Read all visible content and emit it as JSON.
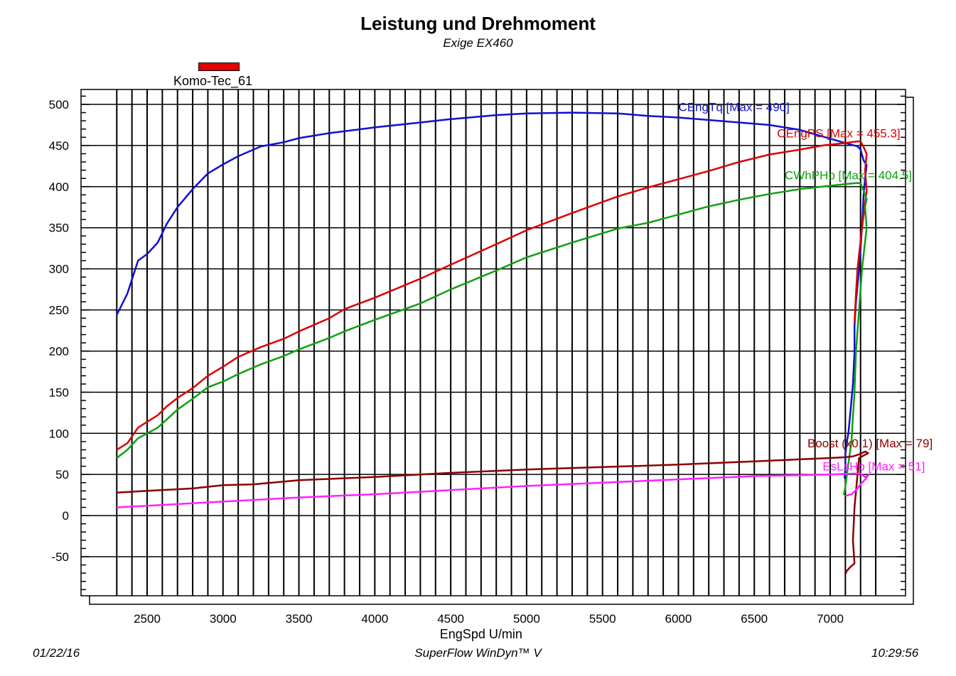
{
  "chart_data": {
    "type": "line",
    "title": "Leistung und Drehmoment",
    "subtitle": "Exige EX460",
    "xlabel": "EngSpd U/min",
    "ylabel": "",
    "xlim": [
      2000,
      7500
    ],
    "ylim": [
      -100,
      510
    ],
    "x_ticks": [
      2500,
      3000,
      3500,
      4000,
      4500,
      5000,
      5500,
      6000,
      6500,
      7000
    ],
    "y_ticks": [
      500,
      450,
      400,
      350,
      300,
      250,
      200,
      150,
      100,
      50,
      0,
      -50
    ],
    "grid": true,
    "legend": {
      "placement": "top-left",
      "entries": [
        {
          "label": "Komo-Tec_61",
          "color": "#e00000"
        }
      ]
    },
    "series": [
      {
        "name": "CEngTq",
        "label": "CEngTq [Max = 490]",
        "color": "#1010d0",
        "points": [
          [
            2300,
            244
          ],
          [
            2370,
            270
          ],
          [
            2440,
            310
          ],
          [
            2500,
            318
          ],
          [
            2570,
            332
          ],
          [
            2630,
            355
          ],
          [
            2700,
            375
          ],
          [
            2800,
            397
          ],
          [
            2900,
            416
          ],
          [
            3000,
            427
          ],
          [
            3100,
            437
          ],
          [
            3250,
            449
          ],
          [
            3400,
            454
          ],
          [
            3500,
            459
          ],
          [
            3700,
            465
          ],
          [
            4000,
            472
          ],
          [
            4300,
            478
          ],
          [
            4500,
            482
          ],
          [
            4800,
            487
          ],
          [
            5000,
            489
          ],
          [
            5300,
            490
          ],
          [
            5600,
            489
          ],
          [
            5800,
            486
          ],
          [
            6000,
            484
          ],
          [
            6200,
            481
          ],
          [
            6400,
            478
          ],
          [
            6600,
            475
          ],
          [
            6800,
            469
          ],
          [
            6950,
            461
          ],
          [
            7100,
            453
          ],
          [
            7180,
            449
          ],
          [
            7200,
            445
          ],
          [
            7220,
            432
          ],
          [
            7240,
            426
          ],
          [
            7230,
            410
          ],
          [
            7220,
            390
          ],
          [
            7210,
            350
          ],
          [
            7190,
            300
          ],
          [
            7170,
            260
          ],
          [
            7160,
            230
          ],
          [
            7160,
            200
          ],
          [
            7150,
            160
          ],
          [
            7130,
            120
          ],
          [
            7120,
            100
          ],
          [
            7110,
            90
          ],
          [
            7100,
            75
          ],
          [
            7100,
            60
          ],
          [
            7095,
            45
          ]
        ]
      },
      {
        "name": "CEngPS",
        "label": "CEngPS [Max = 455.3]",
        "color": "#dd0000",
        "points": [
          [
            2300,
            80
          ],
          [
            2370,
            88
          ],
          [
            2440,
            107
          ],
          [
            2500,
            114
          ],
          [
            2570,
            122
          ],
          [
            2630,
            133
          ],
          [
            2700,
            143
          ],
          [
            2800,
            155
          ],
          [
            2900,
            170
          ],
          [
            3000,
            181
          ],
          [
            3100,
            193
          ],
          [
            3250,
            205
          ],
          [
            3400,
            215
          ],
          [
            3500,
            224
          ],
          [
            3700,
            240
          ],
          [
            3800,
            251
          ],
          [
            4000,
            265
          ],
          [
            4300,
            288
          ],
          [
            4500,
            305
          ],
          [
            4800,
            330
          ],
          [
            5000,
            347
          ],
          [
            5300,
            368
          ],
          [
            5600,
            388
          ],
          [
            5800,
            399
          ],
          [
            6000,
            409
          ],
          [
            6200,
            419
          ],
          [
            6400,
            430
          ],
          [
            6600,
            439
          ],
          [
            6800,
            445
          ],
          [
            6950,
            450
          ],
          [
            7100,
            453
          ],
          [
            7180,
            455
          ],
          [
            7200,
            455
          ],
          [
            7220,
            448
          ],
          [
            7240,
            440
          ],
          [
            7230,
            420
          ],
          [
            7240,
            395
          ],
          [
            7210,
            350
          ],
          [
            7180,
            300
          ],
          [
            7170,
            270
          ],
          [
            7160,
            235
          ]
        ]
      },
      {
        "name": "CWhPHp",
        "label": "CWhPHp [Max = 404.5]",
        "color": "#10a010",
        "points": [
          [
            2300,
            70
          ],
          [
            2370,
            80
          ],
          [
            2440,
            94
          ],
          [
            2500,
            100
          ],
          [
            2570,
            107
          ],
          [
            2630,
            117
          ],
          [
            2700,
            129
          ],
          [
            2800,
            142
          ],
          [
            2900,
            156
          ],
          [
            3000,
            163
          ],
          [
            3100,
            172
          ],
          [
            3250,
            184
          ],
          [
            3400,
            194
          ],
          [
            3500,
            202
          ],
          [
            3700,
            216
          ],
          [
            3800,
            224
          ],
          [
            4000,
            238
          ],
          [
            4300,
            258
          ],
          [
            4500,
            275
          ],
          [
            4800,
            298
          ],
          [
            5000,
            314
          ],
          [
            5300,
            332
          ],
          [
            5600,
            349
          ],
          [
            5800,
            356
          ],
          [
            6000,
            366
          ],
          [
            6200,
            376
          ],
          [
            6400,
            384
          ],
          [
            6600,
            391
          ],
          [
            6800,
            397
          ],
          [
            6950,
            400
          ],
          [
            7100,
            403
          ],
          [
            7180,
            404.5
          ],
          [
            7200,
            404
          ],
          [
            7220,
            395
          ],
          [
            7240,
            385
          ],
          [
            7230,
            375
          ],
          [
            7240,
            350
          ],
          [
            7210,
            300
          ],
          [
            7190,
            250
          ],
          [
            7170,
            200
          ],
          [
            7160,
            150
          ],
          [
            7150,
            120
          ],
          [
            7140,
            90
          ],
          [
            7110,
            50
          ],
          [
            7100,
            35
          ],
          [
            7090,
            25
          ]
        ]
      },
      {
        "name": "Boost (x0.1)",
        "label": "Boost (x0.1) [Max = 79]",
        "color": "#8b0000",
        "points": [
          [
            2300,
            28
          ],
          [
            2500,
            30
          ],
          [
            2800,
            33
          ],
          [
            3000,
            37
          ],
          [
            3200,
            38
          ],
          [
            3500,
            43
          ],
          [
            4000,
            47
          ],
          [
            4500,
            52
          ],
          [
            5000,
            56
          ],
          [
            5500,
            59
          ],
          [
            6000,
            62
          ],
          [
            6500,
            66
          ],
          [
            7000,
            70
          ],
          [
            7100,
            71
          ],
          [
            7150,
            72
          ],
          [
            7200,
            75
          ],
          [
            7230,
            78
          ],
          [
            7250,
            76
          ],
          [
            7220,
            73
          ],
          [
            7190,
            70
          ],
          [
            7160,
            10
          ],
          [
            7150,
            -30
          ],
          [
            7160,
            -58
          ],
          [
            7130,
            -63
          ],
          [
            7100,
            -69
          ],
          [
            7110,
            -70
          ]
        ]
      },
      {
        "name": "EsLsHp",
        "label": "EsLsHp [Max = 51]",
        "color": "#ff20ff",
        "points": [
          [
            2300,
            10
          ],
          [
            2500,
            12
          ],
          [
            3000,
            17
          ],
          [
            3500,
            22
          ],
          [
            4000,
            26
          ],
          [
            4500,
            31
          ],
          [
            5000,
            36
          ],
          [
            5500,
            40
          ],
          [
            6000,
            44
          ],
          [
            6500,
            48
          ],
          [
            7000,
            50
          ],
          [
            7150,
            51
          ],
          [
            7200,
            51
          ],
          [
            7230,
            47
          ],
          [
            7250,
            49
          ],
          [
            7230,
            44
          ],
          [
            7200,
            38
          ],
          [
            7170,
            31
          ],
          [
            7140,
            26
          ],
          [
            7100,
            24
          ]
        ]
      }
    ],
    "annotations": [
      {
        "text": "CEngTq [Max = 490]",
        "series": "CEngTq",
        "x": 6000,
        "y": 492
      },
      {
        "text": "CEngPS [Max = 455.3]",
        "series": "CEngPS",
        "x": 6650,
        "y": 460
      },
      {
        "text": "CWhPHp [Max = 404.5]",
        "series": "CWhPHp",
        "x": 6700,
        "y": 409
      },
      {
        "text": "Boost (x0.1) [Max = 79]",
        "series": "Boost (x0.1)",
        "x": 6850,
        "y": 83
      },
      {
        "text": "EsLsHp [Max = 51]",
        "series": "EsLsHp",
        "x": 6950,
        "y": 55
      }
    ]
  },
  "footer": {
    "date": "01/22/16",
    "software": "SuperFlow WinDyn™ V",
    "time": "10:29:56"
  }
}
